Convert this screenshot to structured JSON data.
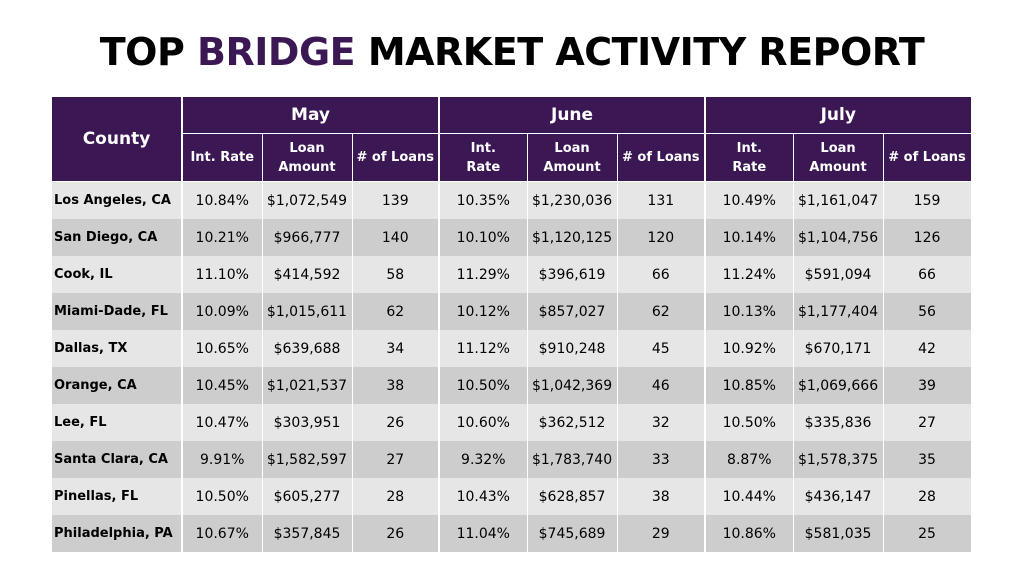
{
  "title": {
    "part1": "TOP ",
    "highlight": "BRIDGE",
    "part2": " MARKET ACTIVITY REPORT"
  },
  "colors": {
    "header_bg": "#3b1854",
    "accent": "#3b1854",
    "row_light": "#e6e6e6",
    "row_dark": "#cdcdcd"
  },
  "header": {
    "county": "County",
    "months": [
      "May",
      "June",
      "July"
    ],
    "columns": [
      {
        "line1": "Int. Rate",
        "line2": ""
      },
      {
        "line1": "Loan",
        "line2": "Amount"
      },
      {
        "line1": "# of Loans",
        "line2": ""
      },
      {
        "line1": "Int.",
        "line2": "Rate"
      },
      {
        "line1": "Loan",
        "line2": "Amount"
      },
      {
        "line1": "# of Loans",
        "line2": ""
      },
      {
        "line1": "Int.",
        "line2": "Rate"
      },
      {
        "line1": "Loan",
        "line2": "Amount"
      },
      {
        "line1": "# of Loans",
        "line2": ""
      }
    ]
  },
  "rows": [
    {
      "county": "Los Angeles, CA",
      "values": [
        "10.84%",
        "$1,072,549",
        "139",
        "10.35%",
        "$1,230,036",
        "131",
        "10.49%",
        "$1,161,047",
        "159"
      ]
    },
    {
      "county": "San Diego, CA",
      "values": [
        "10.21%",
        "$966,777",
        "140",
        "10.10%",
        "$1,120,125",
        "120",
        "10.14%",
        "$1,104,756",
        "126"
      ]
    },
    {
      "county": "Cook, IL",
      "values": [
        "11.10%",
        "$414,592",
        "58",
        "11.29%",
        "$396,619",
        "66",
        "11.24%",
        "$591,094",
        "66"
      ]
    },
    {
      "county": "Miami-Dade, FL",
      "values": [
        "10.09%",
        "$1,015,611",
        "62",
        "10.12%",
        "$857,027",
        "62",
        "10.13%",
        "$1,177,404",
        "56"
      ]
    },
    {
      "county": "Dallas, TX",
      "values": [
        "10.65%",
        "$639,688",
        "34",
        "11.12%",
        "$910,248",
        "45",
        "10.92%",
        "$670,171",
        "42"
      ]
    },
    {
      "county": "Orange, CA",
      "values": [
        "10.45%",
        "$1,021,537",
        "38",
        "10.50%",
        "$1,042,369",
        "46",
        "10.85%",
        "$1,069,666",
        "39"
      ]
    },
    {
      "county": "Lee, FL",
      "values": [
        "10.47%",
        "$303,951",
        "26",
        "10.60%",
        "$362,512",
        "32",
        "10.50%",
        "$335,836",
        "27"
      ]
    },
    {
      "county": "Santa Clara, CA",
      "values": [
        "9.91%",
        "$1,582,597",
        "27",
        "9.32%",
        "$1,783,740",
        "33",
        "8.87%",
        "$1,578,375",
        "35"
      ]
    },
    {
      "county": "Pinellas, FL",
      "values": [
        "10.50%",
        "$605,277",
        "28",
        "10.43%",
        "$628,857",
        "38",
        "10.44%",
        "$436,147",
        "28"
      ]
    },
    {
      "county": "Philadelphia, PA",
      "values": [
        "10.67%",
        "$357,845",
        "26",
        "11.04%",
        "$745,689",
        "29",
        "10.86%",
        "$581,035",
        "25"
      ]
    }
  ]
}
